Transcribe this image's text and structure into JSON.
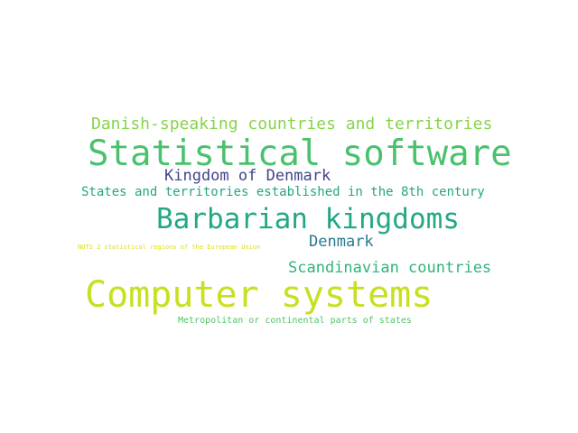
{
  "words": [
    {
      "text": "Danish-speaking countries and territories",
      "color": "#86d549"
    },
    {
      "text": "Statistical software",
      "color": "#4ac16d"
    },
    {
      "text": "Kingdom of Denmark",
      "color": "#414487"
    },
    {
      "text": "States and territories established in the 8th century",
      "color": "#25a584"
    },
    {
      "text": "Barbarian kingdoms",
      "color": "#22a884"
    },
    {
      "text": "Denmark",
      "color": "#2a788e"
    },
    {
      "text": "NUTS 2 statistical regions of the European Union",
      "color": "#d8e219"
    },
    {
      "text": "Scandinavian countries",
      "color": "#2fb47c"
    },
    {
      "text": "Computer systems",
      "color": "#c8e020"
    },
    {
      "text": "Metropolitan or continental parts of states",
      "color": "#52c569"
    }
  ]
}
